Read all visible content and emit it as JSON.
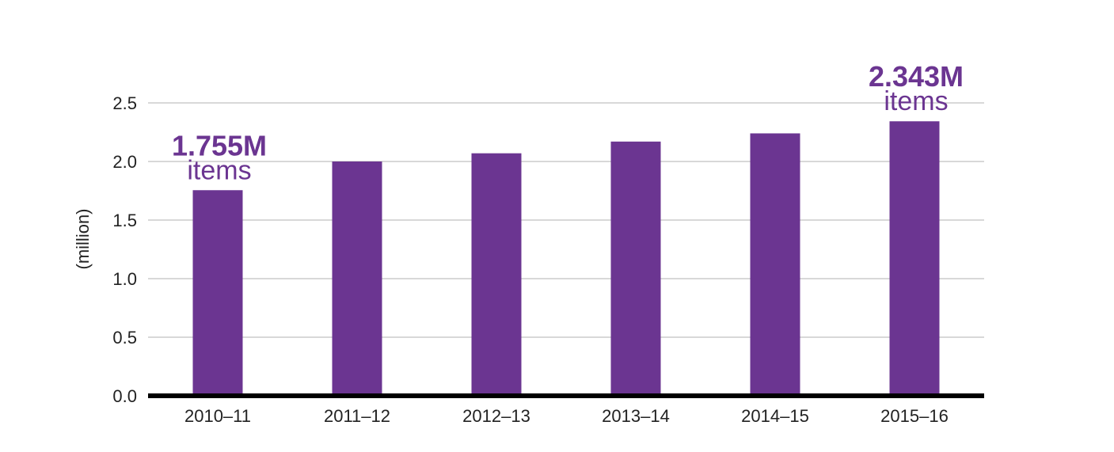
{
  "chart_data": {
    "type": "bar",
    "title": "",
    "xlabel": "",
    "ylabel": "(million)",
    "ylim": [
      0,
      2.5
    ],
    "yticks": [
      "0.0",
      "0.5",
      "1.0",
      "1.5",
      "2.0",
      "2.5"
    ],
    "grid": true,
    "legend": "none",
    "categories": [
      "2010–11",
      "2011–12",
      "2012–13",
      "2013–14",
      "2014–15",
      "2015–16"
    ],
    "values": [
      1.755,
      2.0,
      2.07,
      2.17,
      2.24,
      2.343
    ],
    "bar_color": "#6b3591",
    "annotations": [
      {
        "category_index": 0,
        "value_text": "1.755M",
        "unit_text": "items"
      },
      {
        "category_index": 5,
        "value_text": "2.343M",
        "unit_text": "items"
      }
    ]
  },
  "colors": {
    "bar": "#6b3591",
    "annotation": "#6b3591",
    "gridline": "#b0b0b0",
    "axis": "#000000",
    "text": "#222222"
  }
}
